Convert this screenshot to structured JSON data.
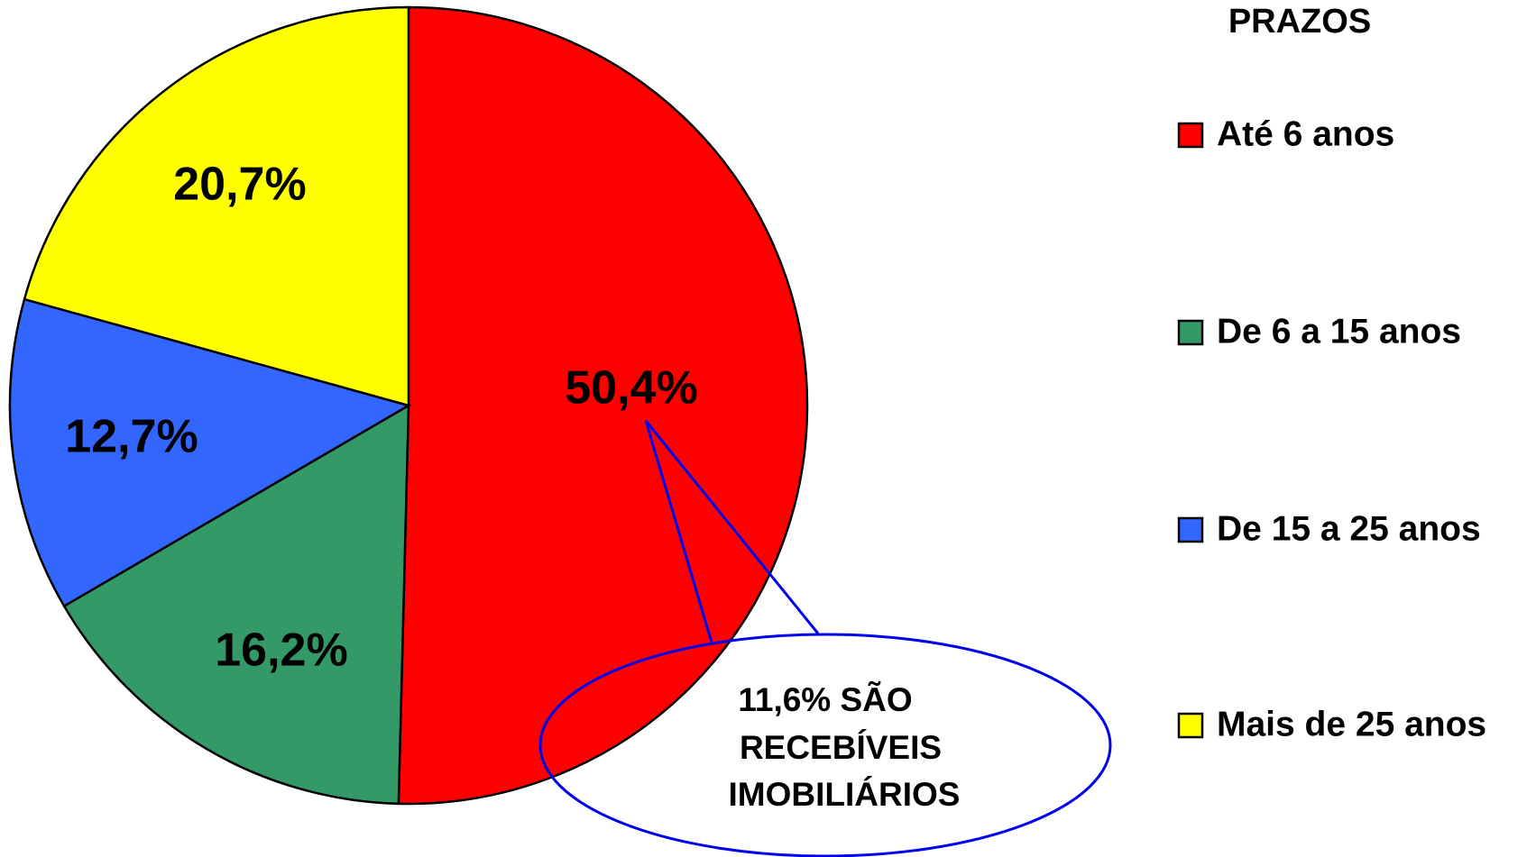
{
  "chart_data": {
    "type": "pie",
    "categories": [
      "Até 6 anos",
      "De 6 a 15 anos",
      "De 15 a 25 anos",
      "Mais de 25 anos"
    ],
    "values": [
      50.4,
      16.2,
      12.7,
      20.7
    ],
    "value_labels": [
      "50,4%",
      "16,2%",
      "12,7%",
      "20,7%"
    ],
    "colors": [
      "#ff0000",
      "#339966",
      "#3366ff",
      "#ffff00"
    ],
    "legend_title": "PRAZOS",
    "legend": "right",
    "annotation": [
      "11,6% SÃO",
      "RECEBÍVEIS",
      "IMOBILIÁRIOS"
    ]
  }
}
